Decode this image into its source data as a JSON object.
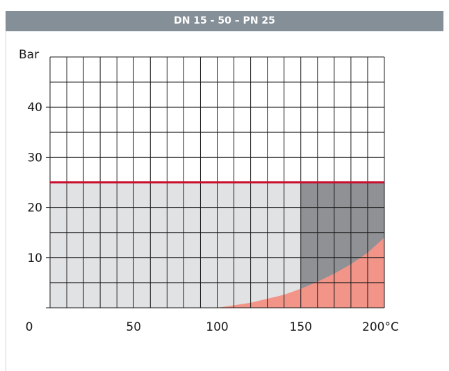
{
  "header": {
    "title": "DN 15 - 50 – PN 25"
  },
  "chart_data": {
    "type": "area",
    "title": "DN 15 - 50 – PN 25",
    "xlabel": "",
    "ylabel": "Bar",
    "x_unit": "°C",
    "xlim": [
      0,
      200
    ],
    "ylim": [
      0,
      50
    ],
    "x_ticks": [
      0,
      50,
      100,
      150,
      200
    ],
    "x_tick_labels": [
      "0",
      "50",
      "100",
      "150",
      "200°C"
    ],
    "y_ticks": [
      10,
      20,
      30,
      40
    ],
    "y_tick_labels": [
      "10",
      "20",
      "30",
      "40"
    ],
    "grid": true,
    "grid_x_step": 10,
    "grid_y_step": 5,
    "series": [
      {
        "values_kind": "pressure_limit",
        "color": "#c8102e",
        "x": [
          0,
          200
        ],
        "y": [
          25,
          25
        ]
      },
      {
        "values_kind": "operating_region",
        "color": "#e1e2e3",
        "x": [
          0,
          200
        ],
        "y": [
          25,
          25
        ]
      },
      {
        "values_kind": "high_temperature_region",
        "color": "#8f9194",
        "x": [
          150,
          200
        ],
        "y": [
          25,
          25
        ]
      },
      {
        "values_kind": "steam_curve",
        "color": "#f29488",
        "x": [
          100,
          120,
          140,
          150,
          160,
          170,
          180,
          190,
          200
        ],
        "y": [
          0,
          1.0,
          2.6,
          3.8,
          5.2,
          6.8,
          8.7,
          11.0,
          14.0
        ]
      }
    ]
  }
}
